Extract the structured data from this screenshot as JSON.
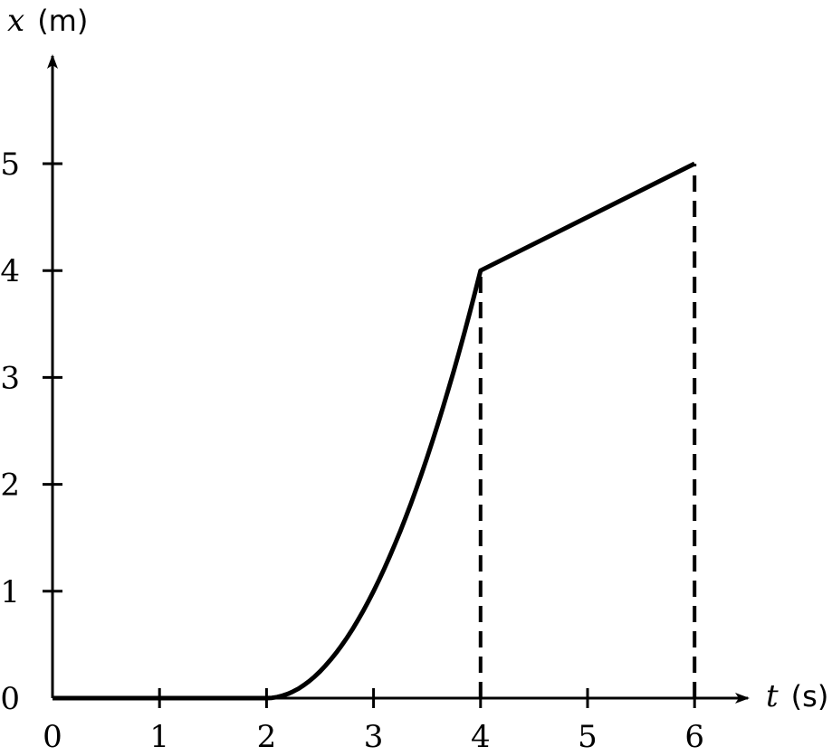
{
  "chart_data": {
    "type": "line",
    "xlabel": {
      "var": "t",
      "unit": "(s)"
    },
    "ylabel": {
      "var": "x",
      "unit": "(m)"
    },
    "xlim": [
      0,
      6.5
    ],
    "ylim": [
      0,
      5.9
    ],
    "x_ticks": [
      0,
      1,
      2,
      3,
      4,
      5,
      6
    ],
    "y_ticks": [
      0,
      1,
      2,
      3,
      4,
      5
    ],
    "grid": false,
    "series": [
      {
        "segments": [
          {
            "kind": "line",
            "points": [
              [
                0,
                0
              ],
              [
                2,
                0
              ]
            ]
          },
          {
            "kind": "parabola",
            "from": [
              2,
              0
            ],
            "to": [
              4,
              4
            ]
          },
          {
            "kind": "line",
            "points": [
              [
                4,
                4
              ],
              [
                6,
                5
              ]
            ]
          }
        ]
      }
    ],
    "reference_lines": [
      {
        "style": "dashed",
        "points": [
          [
            4,
            0
          ],
          [
            4,
            4
          ]
        ]
      },
      {
        "style": "dashed",
        "points": [
          [
            6,
            0
          ],
          [
            6,
            5
          ]
        ]
      }
    ]
  }
}
